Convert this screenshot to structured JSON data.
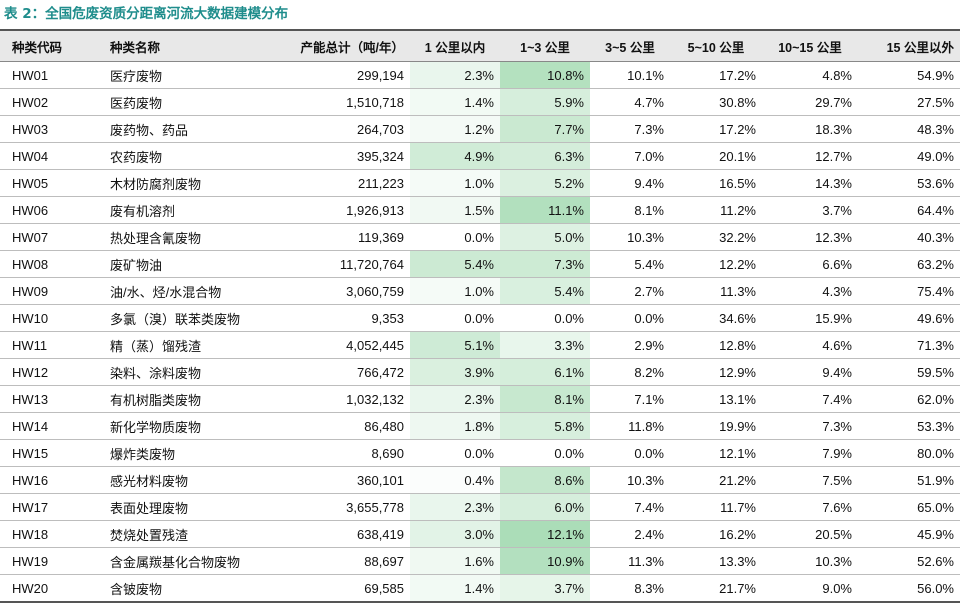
{
  "title": "表 2：全国危废资质分距离河流大数据建模分布",
  "colors": {
    "title": "#1f8d8c",
    "highlight_rgb": "120,200,140",
    "header_bg": "#e8e8e8"
  },
  "headers": [
    "种类代码",
    "种类名称",
    "产能总计（吨/年）",
    "1 公里以内",
    "1~3 公里",
    "3~5 公里",
    "5~10 公里",
    "10~15 公里",
    "15 公里以外"
  ],
  "rows": [
    [
      "HW01",
      "医疗废物",
      "299,194",
      "2.3%",
      "10.8%",
      "10.1%",
      "17.2%",
      "4.8%",
      "54.9%"
    ],
    [
      "HW02",
      "医药废物",
      "1,510,718",
      "1.4%",
      "5.9%",
      "4.7%",
      "30.8%",
      "29.7%",
      "27.5%"
    ],
    [
      "HW03",
      "废药物、药品",
      "264,703",
      "1.2%",
      "7.7%",
      "7.3%",
      "17.2%",
      "18.3%",
      "48.3%"
    ],
    [
      "HW04",
      "农药废物",
      "395,324",
      "4.9%",
      "6.3%",
      "7.0%",
      "20.1%",
      "12.7%",
      "49.0%"
    ],
    [
      "HW05",
      "木材防腐剂废物",
      "211,223",
      "1.0%",
      "5.2%",
      "9.4%",
      "16.5%",
      "14.3%",
      "53.6%"
    ],
    [
      "HW06",
      "废有机溶剂",
      "1,926,913",
      "1.5%",
      "11.1%",
      "8.1%",
      "11.2%",
      "3.7%",
      "64.4%"
    ],
    [
      "HW07",
      "热处理含氰废物",
      "119,369",
      "0.0%",
      "5.0%",
      "10.3%",
      "32.2%",
      "12.3%",
      "40.3%"
    ],
    [
      "HW08",
      "废矿物油",
      "11,720,764",
      "5.4%",
      "7.3%",
      "5.4%",
      "12.2%",
      "6.6%",
      "63.2%"
    ],
    [
      "HW09",
      "油/水、烃/水混合物",
      "3,060,759",
      "1.0%",
      "5.4%",
      "2.7%",
      "11.3%",
      "4.3%",
      "75.4%"
    ],
    [
      "HW10",
      "多氯（溴）联苯类废物",
      "9,353",
      "0.0%",
      "0.0%",
      "0.0%",
      "34.6%",
      "15.9%",
      "49.6%"
    ],
    [
      "HW11",
      "精（蒸）馏残渣",
      "4,052,445",
      "5.1%",
      "3.3%",
      "2.9%",
      "12.8%",
      "4.6%",
      "71.3%"
    ],
    [
      "HW12",
      "染料、涂料废物",
      "766,472",
      "3.9%",
      "6.1%",
      "8.2%",
      "12.9%",
      "9.4%",
      "59.5%"
    ],
    [
      "HW13",
      "有机树脂类废物",
      "1,032,132",
      "2.3%",
      "8.1%",
      "7.1%",
      "13.1%",
      "7.4%",
      "62.0%"
    ],
    [
      "HW14",
      "新化学物质废物",
      "86,480",
      "1.8%",
      "5.8%",
      "11.8%",
      "19.9%",
      "7.3%",
      "53.3%"
    ],
    [
      "HW15",
      "爆炸类废物",
      "8,690",
      "0.0%",
      "0.0%",
      "0.0%",
      "12.1%",
      "7.9%",
      "80.0%"
    ],
    [
      "HW16",
      "感光材料废物",
      "360,101",
      "0.4%",
      "8.6%",
      "10.3%",
      "21.2%",
      "7.5%",
      "51.9%"
    ],
    [
      "HW17",
      "表面处理废物",
      "3,655,778",
      "2.3%",
      "6.0%",
      "7.4%",
      "11.7%",
      "7.6%",
      "65.0%"
    ],
    [
      "HW18",
      "焚烧处置残渣",
      "638,419",
      "3.0%",
      "12.1%",
      "2.4%",
      "16.2%",
      "20.5%",
      "45.9%"
    ],
    [
      "HW19",
      "含金属羰基化合物废物",
      "88,697",
      "1.6%",
      "10.9%",
      "11.3%",
      "13.3%",
      "10.3%",
      "52.6%"
    ],
    [
      "HW20",
      "含铍废物",
      "69,585",
      "1.4%",
      "3.7%",
      "8.3%",
      "21.7%",
      "9.0%",
      "56.0%"
    ]
  ]
}
